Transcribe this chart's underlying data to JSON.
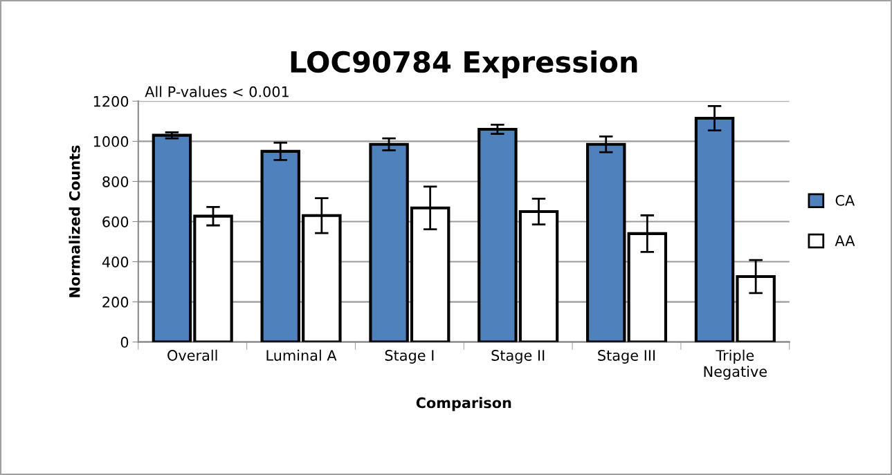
{
  "chart_data": {
    "type": "bar",
    "title": "LOC90784 Expression",
    "xlabel": "Comparison",
    "ylabel": "Normalized Counts",
    "annotations": [
      "All P-values < 0.001"
    ],
    "categories": [
      "Overall",
      "Luminal A",
      "Stage I",
      "Stage II",
      "Stage III",
      "Triple\nNegative"
    ],
    "series": [
      {
        "name": "CA",
        "color": "#4f81bd",
        "values": [
          1030,
          950,
          985,
          1060,
          985,
          1115
        ],
        "errors": [
          15,
          43,
          30,
          23,
          39,
          61
        ]
      },
      {
        "name": "AA",
        "color": "#ffffff",
        "values": [
          627,
          630,
          668,
          650,
          540,
          326
        ],
        "errors": [
          46,
          87,
          106,
          64,
          91,
          82
        ]
      }
    ],
    "ylim": [
      0,
      1200
    ],
    "yticks": [
      0,
      200,
      400,
      600,
      800,
      1000,
      1200
    ],
    "grid": "y",
    "legend": "right"
  }
}
